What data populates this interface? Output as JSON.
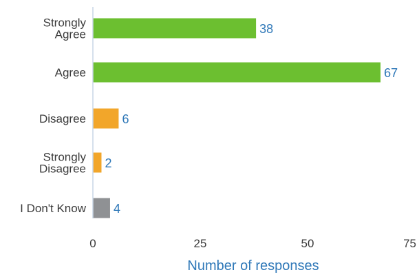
{
  "chart_data": {
    "type": "bar",
    "orientation": "horizontal",
    "categories": [
      [
        "Strongly",
        "Agree"
      ],
      [
        "Agree"
      ],
      [
        "Disagree"
      ],
      [
        "Strongly",
        "Disagree"
      ],
      [
        "I Don't Know"
      ]
    ],
    "values": [
      38,
      67,
      6,
      2,
      4
    ],
    "bar_colors": [
      "#6cbf30",
      "#6cbf30",
      "#f2a62a",
      "#f2a62a",
      "#8f9194"
    ],
    "xlabel": "Number of responses",
    "xlim": [
      0,
      75
    ],
    "x_ticks": [
      0,
      25,
      50,
      75
    ],
    "grid": false,
    "legend": "none",
    "colors": {
      "axis_title": "#2f78b8",
      "data_label": "#2f78b8",
      "axis_line": "#c9d6e6",
      "tick_label": "#3a3a3a"
    }
  }
}
